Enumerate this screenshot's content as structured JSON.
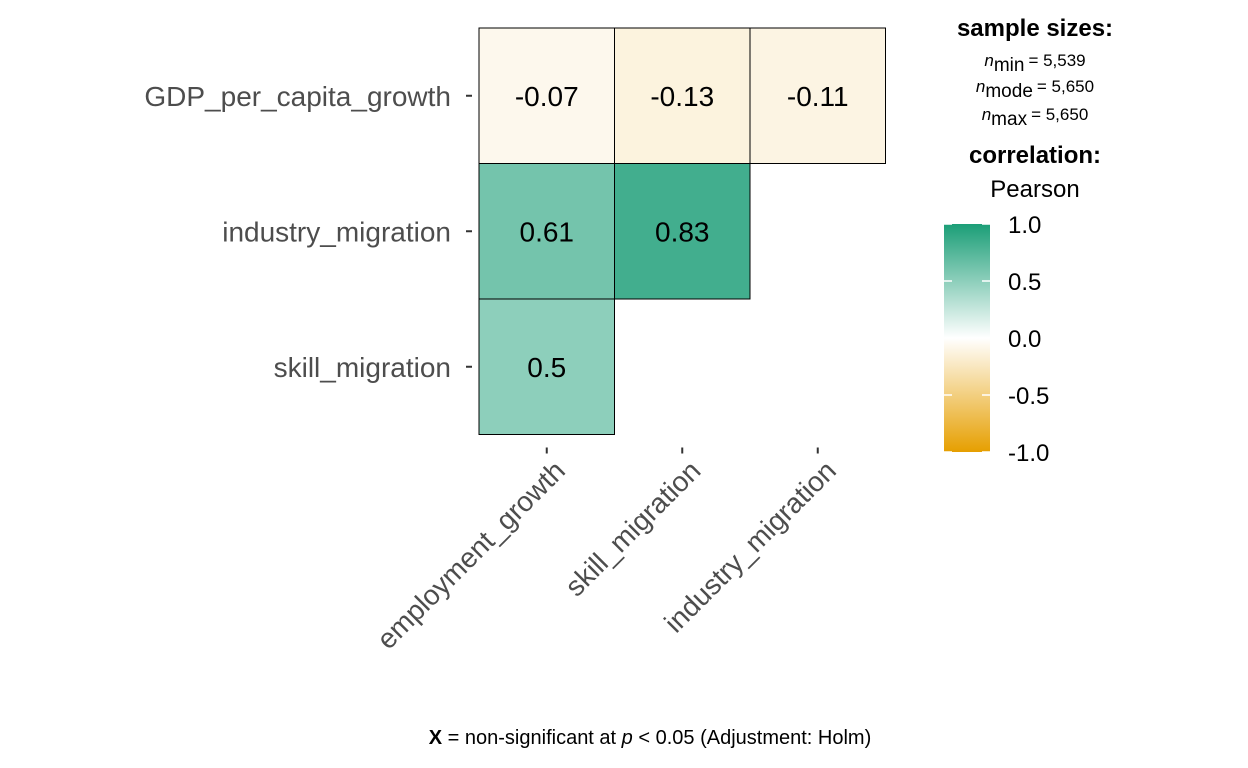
{
  "chart_data": {
    "type": "heatmap",
    "y_categories": [
      "GDP_per_capita_growth",
      "industry_migration",
      "skill_migration"
    ],
    "x_categories": [
      "employment_growth",
      "skill_migration",
      "industry_migration"
    ],
    "cells": [
      {
        "row": "GDP_per_capita_growth",
        "col": "employment_growth",
        "value": -0.07,
        "label": "-0.07"
      },
      {
        "row": "GDP_per_capita_growth",
        "col": "skill_migration",
        "value": -0.13,
        "label": "-0.13"
      },
      {
        "row": "GDP_per_capita_growth",
        "col": "industry_migration",
        "value": -0.11,
        "label": "-0.11"
      },
      {
        "row": "industry_migration",
        "col": "employment_growth",
        "value": 0.61,
        "label": "0.61"
      },
      {
        "row": "industry_migration",
        "col": "skill_migration",
        "value": 0.83,
        "label": "0.83"
      },
      {
        "row": "skill_migration",
        "col": "employment_growth",
        "value": 0.5,
        "label": "0.5"
      }
    ],
    "legend": {
      "sample_sizes_title": "sample sizes:",
      "n_min": {
        "symbol": "n",
        "sub": "min",
        "value": "= 5,539"
      },
      "n_mode": {
        "symbol": "n",
        "sub": "mode",
        "value": "= 5,650"
      },
      "n_max": {
        "symbol": "n",
        "sub": "max",
        "value": "= 5,650"
      },
      "correlation_title": "correlation:",
      "method": "Pearson",
      "color_range": [
        -1.0,
        1.0
      ],
      "ticks": [
        "1.0",
        "0.5",
        "0.0",
        "-0.5",
        "-1.0"
      ],
      "tick_values": [
        1.0,
        0.5,
        0.0,
        -0.5,
        -1.0
      ],
      "colors": {
        "high": "#1b9e77",
        "mid": "#ffffff",
        "low": "#e69f00"
      }
    },
    "caption": {
      "x_symbol": "X",
      "text1": " = non-significant at ",
      "p_symbol": "p",
      "text2": " < 0.05 (Adjustment: Holm)"
    }
  }
}
